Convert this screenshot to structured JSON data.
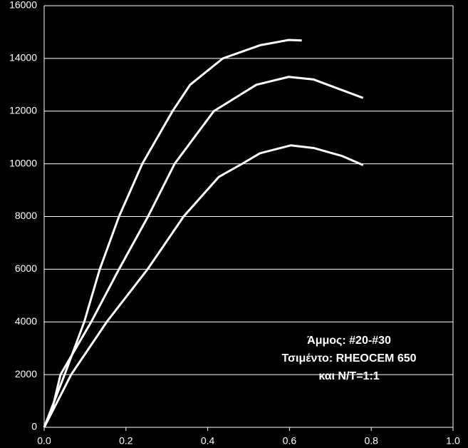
{
  "chart_data": {
    "type": "line",
    "series": [
      {
        "color": "#ffffff",
        "x": [
          0,
          0.02,
          0.05,
          0.098,
          0.136,
          0.183,
          0.24,
          0.314,
          0.357,
          0.437,
          0.528,
          0.598,
          0.63
        ],
        "values": [
          0,
          800,
          2000,
          4000,
          6000,
          8000,
          10000,
          12000,
          13000,
          14000,
          14500,
          14700,
          14680
        ]
      },
      {
        "color": "#ffffff",
        "x": [
          0,
          0.02,
          0.04,
          0.115,
          0.183,
          0.254,
          0.319,
          0.415,
          0.519,
          0.598,
          0.659,
          0.728,
          0.78
        ],
        "values": [
          0,
          700,
          2000,
          4000,
          6000,
          8000,
          10000,
          12000,
          13000,
          13300,
          13200,
          12800,
          12500
        ]
      },
      {
        "color": "#ffffff",
        "x": [
          0,
          0.02,
          0.066,
          0.153,
          0.253,
          0.341,
          0.427,
          0.484,
          0.528,
          0.603,
          0.659,
          0.728,
          0.78
        ],
        "values": [
          0,
          600,
          2000,
          4000,
          6000,
          8000,
          9500,
          10000,
          10400,
          10700,
          10600,
          10300,
          9950
        ]
      }
    ],
    "xlim": [
      0,
      1.0
    ],
    "xticks": [
      {
        "value": 0,
        "label": "0.0"
      },
      0.2,
      0.4,
      0.6,
      0.8,
      {
        "value": 1.0,
        "label": "1.0"
      }
    ],
    "ylim": [
      0,
      16000
    ],
    "yticks": [
      0,
      2000,
      4000,
      6000,
      8000,
      10000,
      12000,
      14000,
      16000
    ],
    "grid": true,
    "annotation": [
      "Άμμος: #20-#30",
      "Τσιμέντο: RHEOCEM 650",
      "και N/T=1:1"
    ]
  }
}
